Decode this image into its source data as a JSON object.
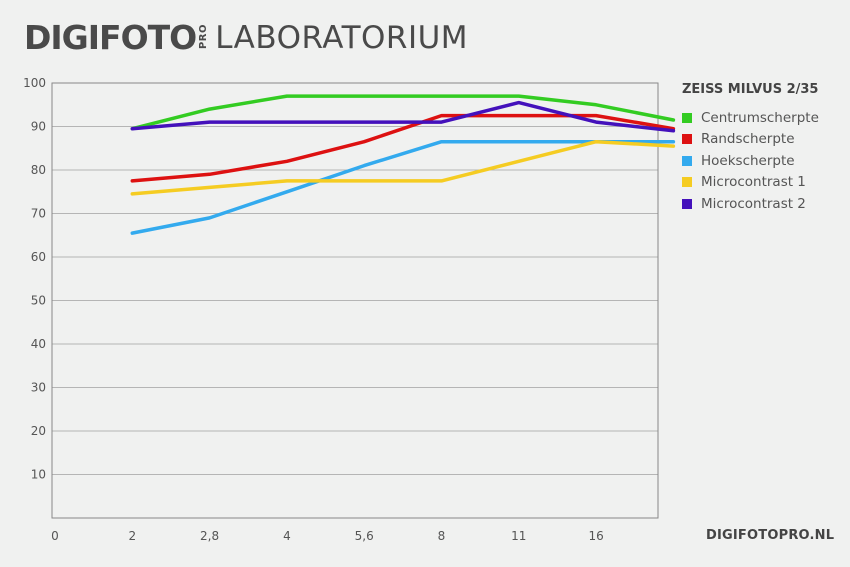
{
  "header": {
    "brand": "DIGIFOTO",
    "brand_suffix": "PRO",
    "section": "LABORATORIUM"
  },
  "footer": {
    "url": "DIGIFOTOPRO.NL"
  },
  "colors": {
    "background": "#f0f1f0",
    "grid": "#b5b5b5",
    "Centrumscherpte": "#33cc22",
    "Randscherpte": "#dd1111",
    "Hoekscherpte": "#33aaee",
    "Microcontrast 1": "#f5cc22",
    "Microcontrast 2": "#4411bb"
  },
  "chart_data": {
    "type": "line",
    "title": "ZEISS MILVUS 2/35",
    "xlabel": "",
    "ylabel": "",
    "x_ticks": [
      "0",
      "2",
      "2,8",
      "4",
      "5,6",
      "8",
      "11",
      "16"
    ],
    "y_ticks": [
      10,
      20,
      30,
      40,
      50,
      60,
      70,
      80,
      90,
      100
    ],
    "ylim": [
      0,
      100
    ],
    "grid": true,
    "legend_position": "right",
    "series": [
      {
        "name": "Centrumscherpte",
        "color": "#33cc22",
        "points": [
          [
            1,
            89.5
          ],
          [
            2,
            94
          ],
          [
            3,
            97
          ],
          [
            4,
            97
          ],
          [
            5,
            97
          ],
          [
            6,
            97
          ],
          [
            7,
            95
          ],
          [
            8,
            91.5
          ]
        ]
      },
      {
        "name": "Randscherpte",
        "color": "#dd1111",
        "points": [
          [
            1,
            77.5
          ],
          [
            2,
            79
          ],
          [
            3,
            82
          ],
          [
            4,
            86.5
          ],
          [
            5,
            92.5
          ],
          [
            6,
            92.5
          ],
          [
            7,
            92.5
          ],
          [
            8,
            89.5
          ]
        ]
      },
      {
        "name": "Hoekscherpte",
        "color": "#33aaee",
        "points": [
          [
            1,
            65.5
          ],
          [
            2,
            69
          ],
          [
            3,
            75
          ],
          [
            4,
            81
          ],
          [
            5,
            86.5
          ],
          [
            6,
            86.5
          ],
          [
            7,
            86.5
          ],
          [
            8,
            86.5
          ]
        ]
      },
      {
        "name": "Microcontrast 1",
        "color": "#f5cc22",
        "points": [
          [
            1,
            74.5
          ],
          [
            2,
            76
          ],
          [
            3,
            77.5
          ],
          [
            4,
            77.5
          ],
          [
            5,
            77.5
          ],
          [
            6,
            82
          ],
          [
            7,
            86.5
          ],
          [
            8,
            85.5
          ]
        ]
      },
      {
        "name": "Microcontrast 2",
        "color": "#4411bb",
        "points": [
          [
            1,
            89.5
          ],
          [
            2,
            91
          ],
          [
            3,
            91
          ],
          [
            4,
            91
          ],
          [
            5,
            91
          ],
          [
            6,
            95.5
          ],
          [
            7,
            91
          ],
          [
            8,
            89
          ]
        ]
      }
    ]
  }
}
